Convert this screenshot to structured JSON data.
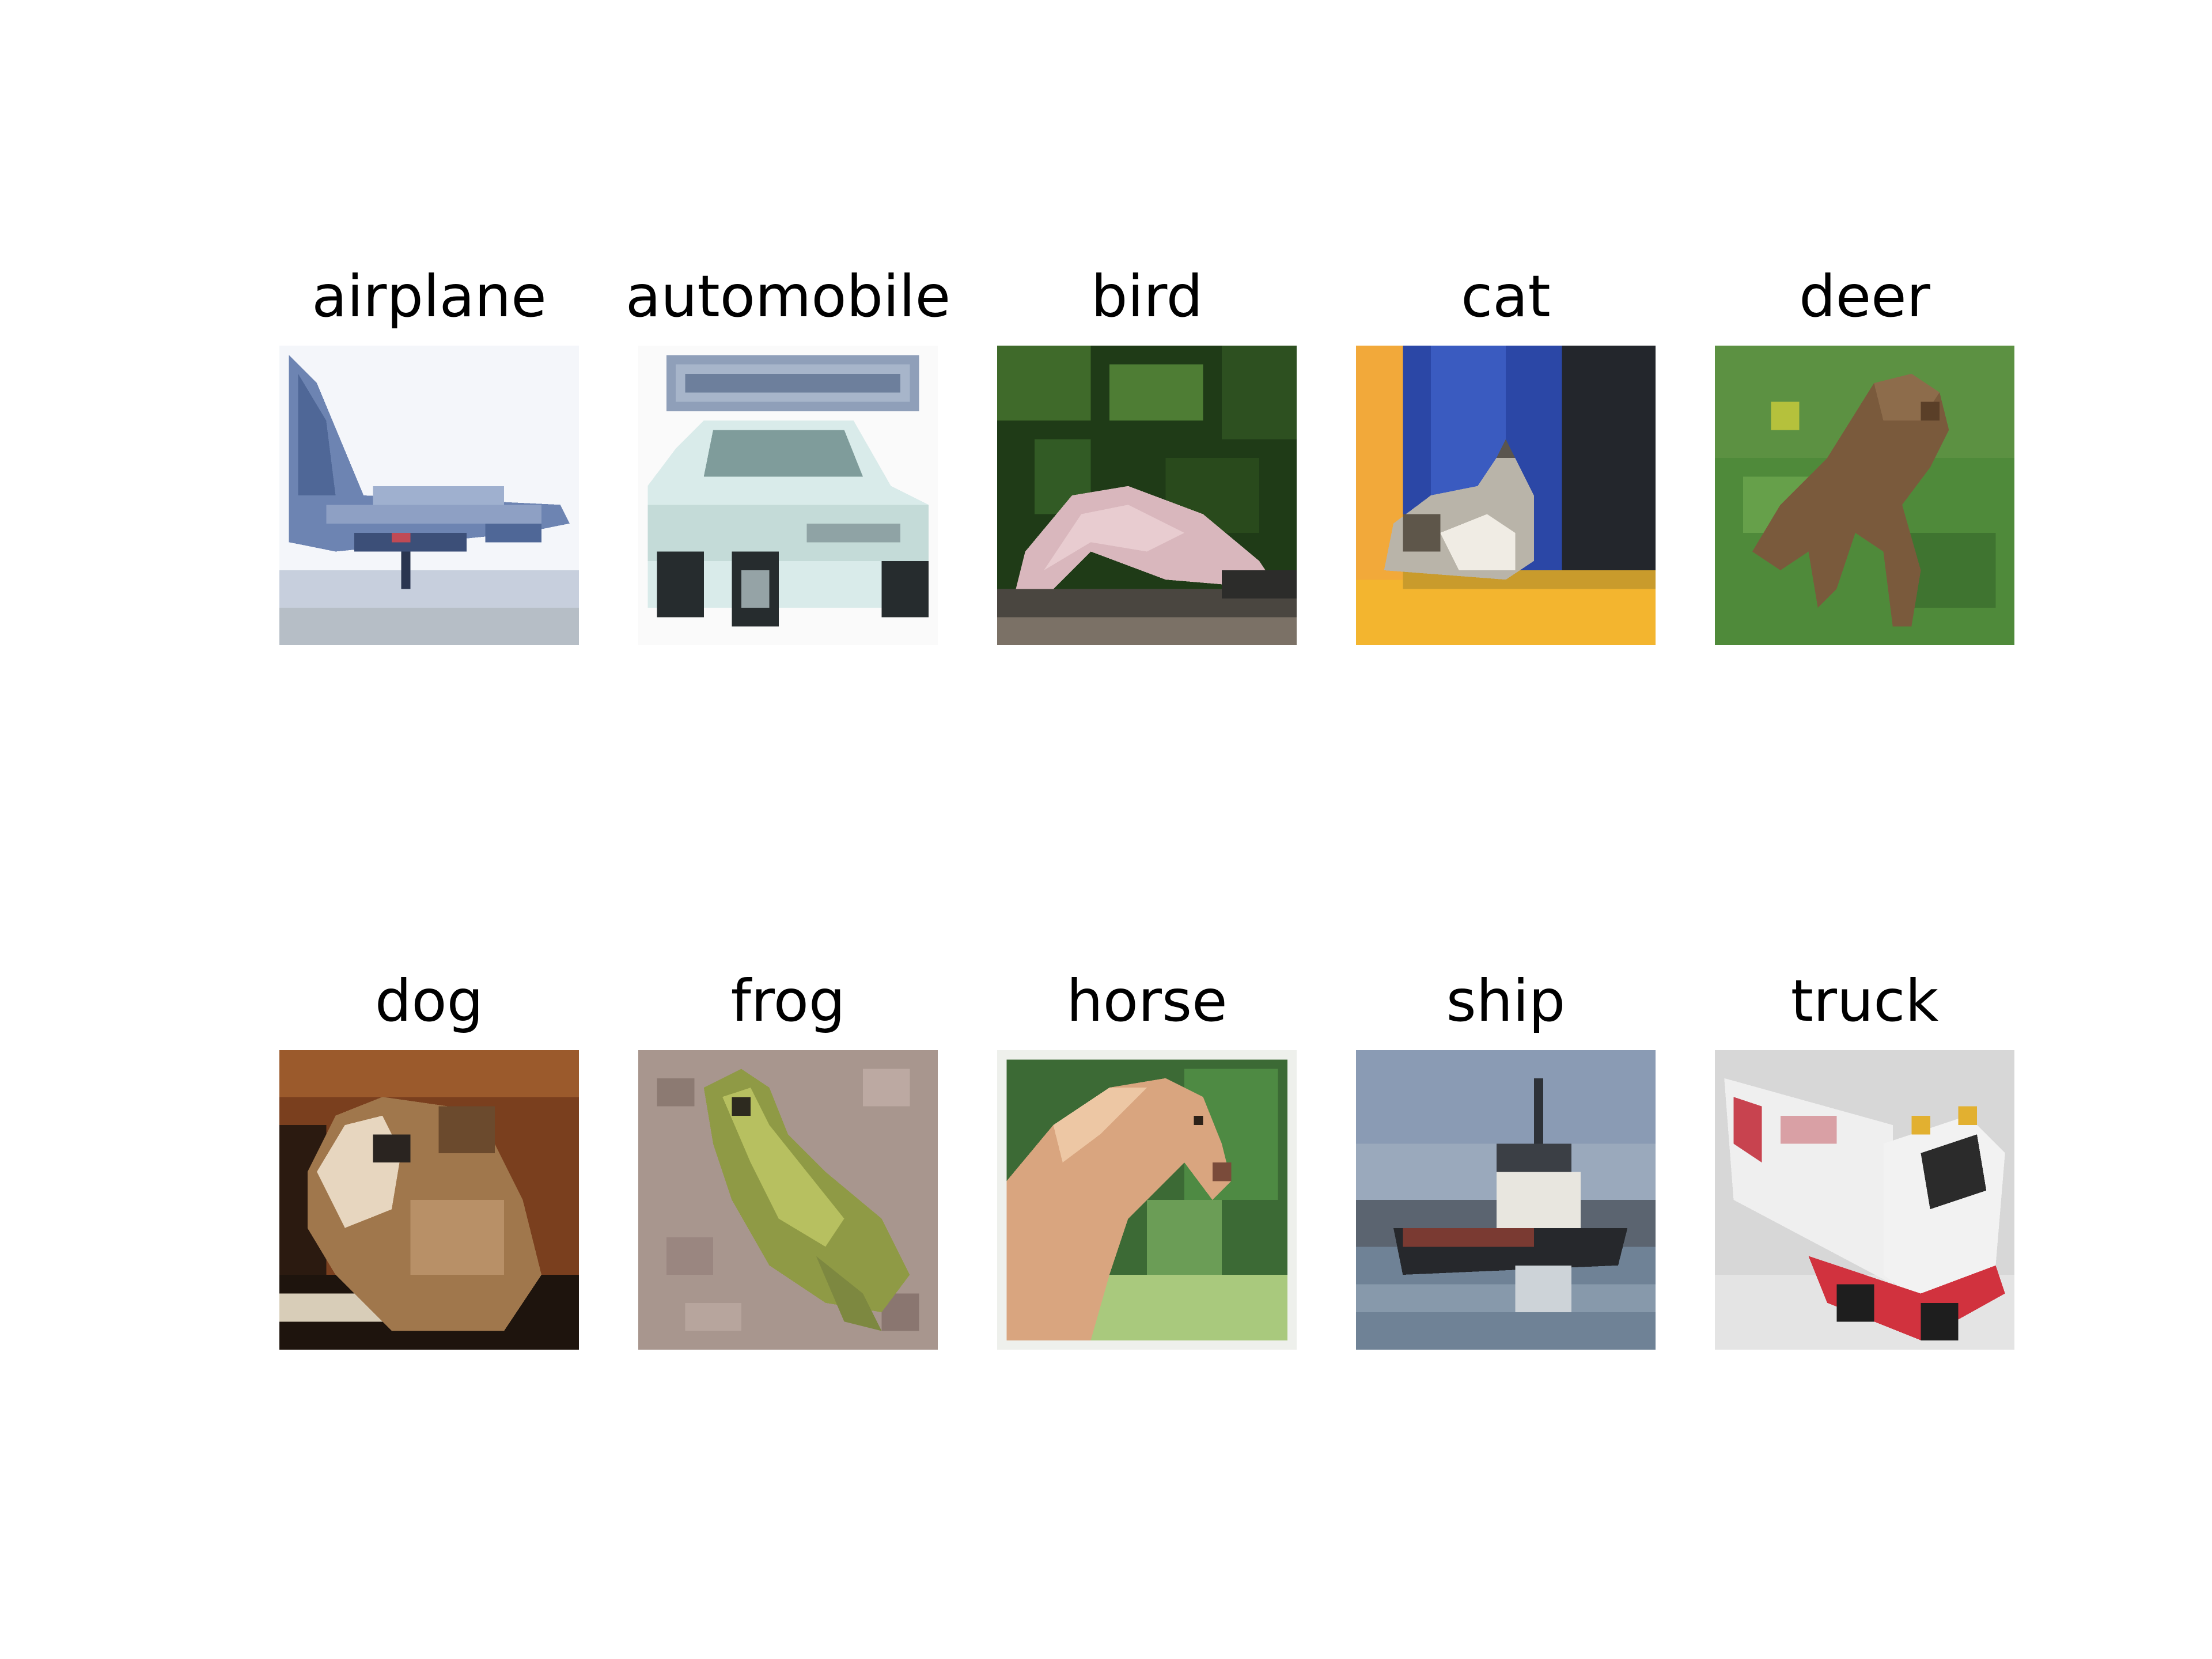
{
  "panels": [
    {
      "label": "airplane",
      "thumbnail": "airplane-thumbnail"
    },
    {
      "label": "automobile",
      "thumbnail": "automobile-thumbnail"
    },
    {
      "label": "bird",
      "thumbnail": "bird-thumbnail"
    },
    {
      "label": "cat",
      "thumbnail": "cat-thumbnail"
    },
    {
      "label": "deer",
      "thumbnail": "deer-thumbnail"
    },
    {
      "label": "dog",
      "thumbnail": "dog-thumbnail"
    },
    {
      "label": "frog",
      "thumbnail": "frog-thumbnail"
    },
    {
      "label": "horse",
      "thumbnail": "horse-thumbnail"
    },
    {
      "label": "ship",
      "thumbnail": "ship-thumbnail"
    },
    {
      "label": "truck",
      "thumbnail": "truck-thumbnail"
    }
  ]
}
